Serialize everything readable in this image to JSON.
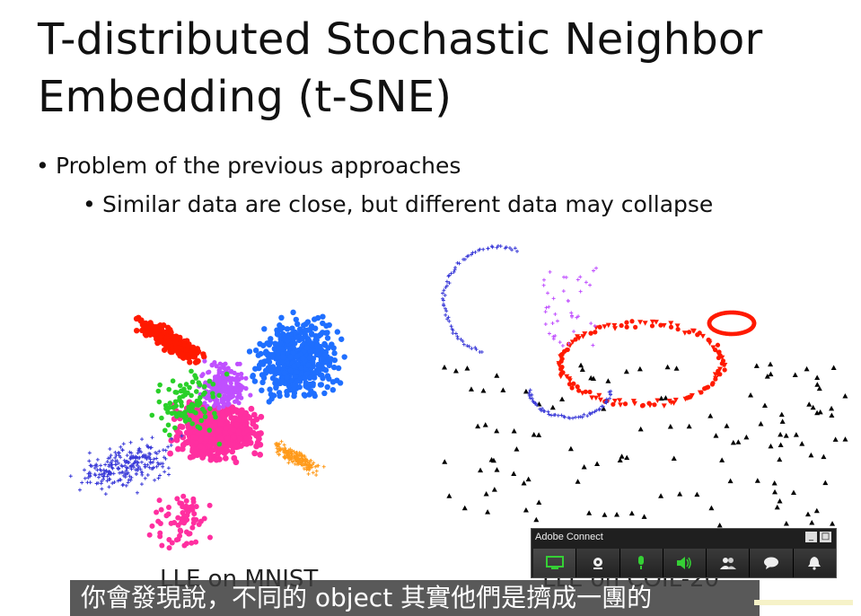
{
  "slide": {
    "title_line1": "T-distributed Stochastic Neighbor",
    "title_line2": "Embedding (t-SNE)",
    "bullet1": "Problem of the previous approaches",
    "bullet2": "Similar data are close, but different data may collapse",
    "plot_left_label": "LLE on MNIST",
    "plot_right_label": "LLE on COIL-20"
  },
  "adobe_connect": {
    "title": "Adobe Connect",
    "minimize_label": "_",
    "maximize_label": "□",
    "tools": [
      "screen-share-icon",
      "camera-icon",
      "microphone-icon",
      "speaker-icon",
      "attendees-icon",
      "chat-icon",
      "notification-icon"
    ]
  },
  "subtitle": {
    "text": "你會發現說，不同的 object 其實他們是擠成一團的"
  },
  "colors": {
    "red": "#ff1a00",
    "blue": "#1f6fff",
    "magenta": "#ff2fa0",
    "violet": "#c050ff",
    "green": "#2ad02a",
    "orange": "#ff9a1a",
    "navy": "#3a3ad8",
    "black": "#000000",
    "toolbar_green": "#35d035"
  }
}
